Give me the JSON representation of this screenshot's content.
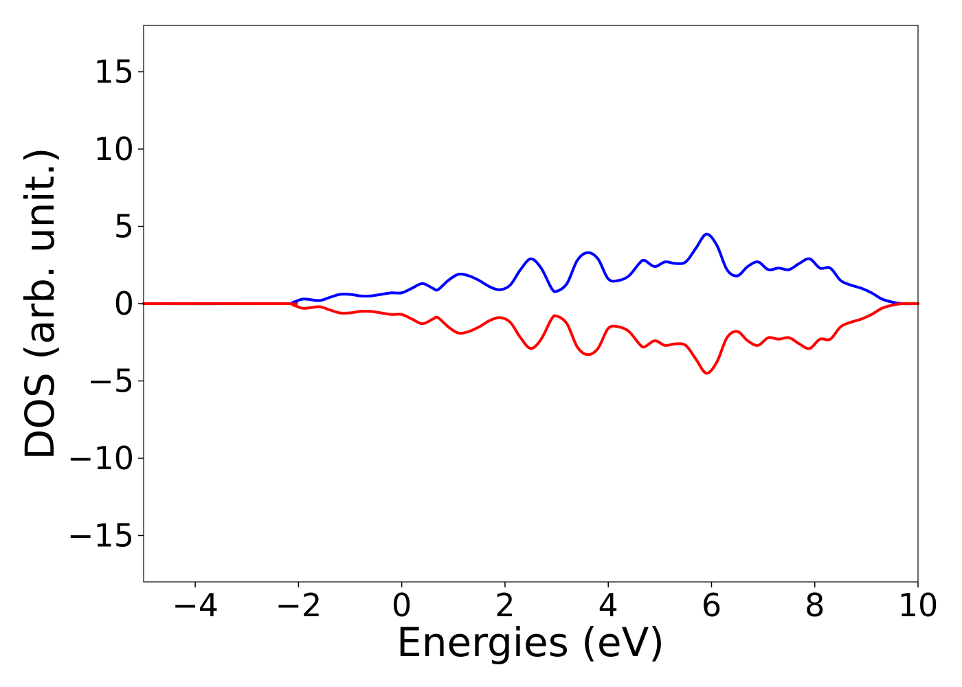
{
  "chart_data": {
    "type": "line",
    "xlabel": "Energies (eV)",
    "ylabel": "DOS (arb. unit.)",
    "xlim": [
      -5,
      10
    ],
    "ylim": [
      -18,
      18
    ],
    "x_ticks": [
      -4,
      -2,
      0,
      2,
      4,
      6,
      8,
      10
    ],
    "x_tick_labels": [
      "−4",
      "−2",
      "0",
      "2",
      "4",
      "6",
      "8",
      "10"
    ],
    "y_ticks": [
      -15,
      -10,
      -5,
      0,
      5,
      10,
      15
    ],
    "y_tick_labels": [
      "−15",
      "−10",
      "−5",
      "0",
      "5",
      "10",
      "15"
    ],
    "grid": false,
    "series": [
      {
        "color": "#0000ff",
        "x": [
          -5,
          -2.3,
          -2.1,
          -1.9,
          -1.6,
          -1.4,
          -1.2,
          -1.0,
          -0.8,
          -0.6,
          -0.4,
          -0.2,
          0.0,
          0.2,
          0.4,
          0.6,
          0.7,
          0.9,
          1.1,
          1.3,
          1.5,
          1.7,
          1.9,
          2.1,
          2.3,
          2.5,
          2.7,
          2.9,
          3.0,
          3.2,
          3.4,
          3.6,
          3.8,
          4.0,
          4.2,
          4.4,
          4.6,
          4.7,
          4.9,
          5.1,
          5.3,
          5.5,
          5.7,
          5.9,
          6.1,
          6.3,
          6.5,
          6.7,
          6.9,
          7.1,
          7.3,
          7.5,
          7.7,
          7.9,
          8.1,
          8.3,
          8.5,
          8.7,
          8.9,
          9.1,
          9.3,
          9.5,
          9.7,
          10
        ],
        "y": [
          0,
          0,
          0.1,
          0.3,
          0.2,
          0.4,
          0.6,
          0.6,
          0.5,
          0.5,
          0.6,
          0.7,
          0.7,
          1.0,
          1.3,
          1.0,
          0.9,
          1.5,
          1.9,
          1.8,
          1.5,
          1.1,
          0.9,
          1.2,
          2.2,
          2.9,
          2.3,
          1.0,
          0.8,
          1.3,
          2.8,
          3.3,
          2.9,
          1.6,
          1.5,
          1.8,
          2.6,
          2.8,
          2.4,
          2.7,
          2.6,
          2.7,
          3.6,
          4.5,
          3.8,
          2.2,
          1.8,
          2.4,
          2.7,
          2.2,
          2.3,
          2.2,
          2.6,
          2.9,
          2.3,
          2.3,
          1.5,
          1.2,
          1.0,
          0.7,
          0.3,
          0.1,
          0.0,
          0
        ]
      },
      {
        "color": "#ff0000",
        "x": [
          -5,
          -2.3,
          -2.1,
          -1.9,
          -1.6,
          -1.4,
          -1.2,
          -1.0,
          -0.8,
          -0.6,
          -0.4,
          -0.2,
          0.0,
          0.2,
          0.4,
          0.6,
          0.7,
          0.9,
          1.1,
          1.3,
          1.5,
          1.7,
          1.9,
          2.1,
          2.3,
          2.5,
          2.7,
          2.9,
          3.0,
          3.2,
          3.4,
          3.6,
          3.8,
          4.0,
          4.2,
          4.4,
          4.6,
          4.7,
          4.9,
          5.1,
          5.3,
          5.5,
          5.7,
          5.9,
          6.1,
          6.3,
          6.5,
          6.7,
          6.9,
          7.1,
          7.3,
          7.5,
          7.7,
          7.9,
          8.1,
          8.3,
          8.5,
          8.7,
          8.9,
          9.1,
          9.3,
          9.5,
          9.7,
          10
        ],
        "y": [
          0,
          0,
          -0.1,
          -0.3,
          -0.2,
          -0.4,
          -0.6,
          -0.6,
          -0.5,
          -0.5,
          -0.6,
          -0.7,
          -0.7,
          -1.0,
          -1.3,
          -1.0,
          -0.9,
          -1.5,
          -1.9,
          -1.8,
          -1.5,
          -1.1,
          -0.9,
          -1.2,
          -2.2,
          -2.9,
          -2.3,
          -1.0,
          -0.8,
          -1.3,
          -2.8,
          -3.3,
          -2.9,
          -1.6,
          -1.5,
          -1.8,
          -2.6,
          -2.8,
          -2.4,
          -2.7,
          -2.6,
          -2.7,
          -3.6,
          -4.5,
          -3.8,
          -2.2,
          -1.8,
          -2.4,
          -2.7,
          -2.2,
          -2.3,
          -2.2,
          -2.6,
          -2.9,
          -2.3,
          -2.3,
          -1.5,
          -1.2,
          -1.0,
          -0.7,
          -0.3,
          -0.1,
          -0.0,
          0
        ]
      }
    ]
  }
}
